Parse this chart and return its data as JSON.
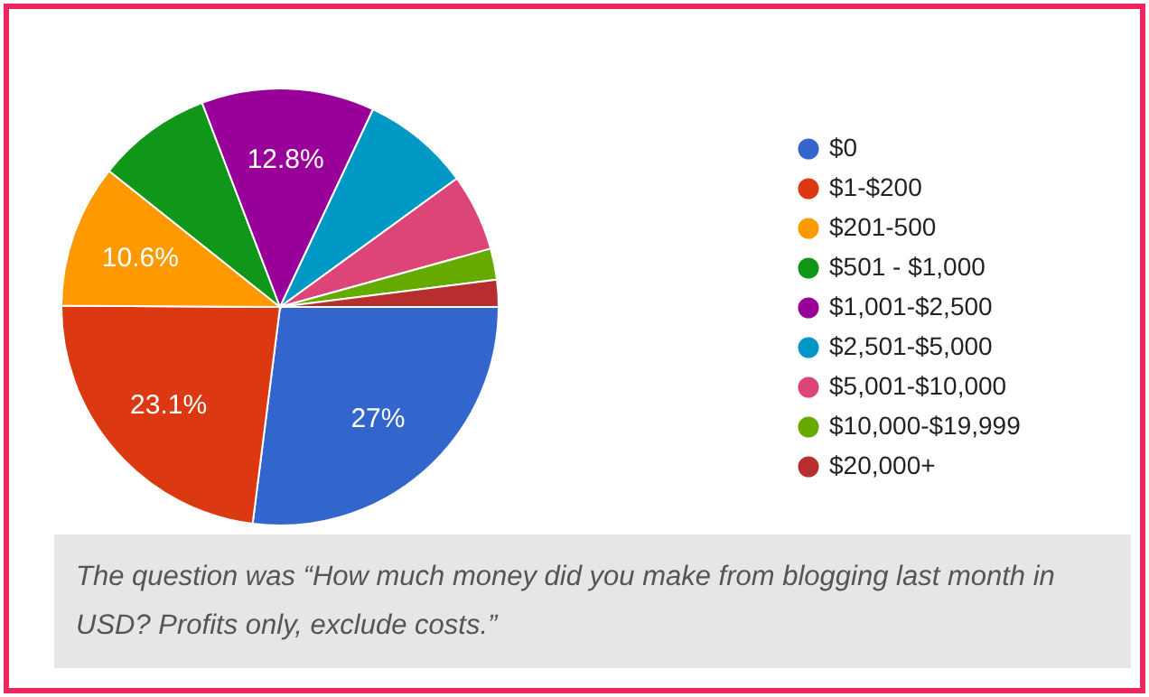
{
  "chart_data": {
    "type": "pie",
    "categories": [
      "$0",
      "$1-$200",
      "$201-500",
      "$501 - $1,000",
      "$1,001-$2,500",
      "$2,501-$5,000",
      "$5,001-$10,000",
      "$10,000-$19,999",
      "$20,000+"
    ],
    "values": [
      27,
      23.1,
      10.6,
      8.5,
      12.8,
      8.0,
      5.7,
      2.3,
      2.0
    ],
    "value_labels": [
      "27%",
      "23.1%",
      "10.6%",
      null,
      "12.8%",
      null,
      null,
      null,
      null
    ],
    "colors": [
      "#3366cc",
      "#dc3912",
      "#ff9900",
      "#109618",
      "#990099",
      "#0099c6",
      "#dd4477",
      "#66aa00",
      "#b82e2e"
    ],
    "legend": "right",
    "annotations": [
      "The question was “How much money did you make from blogging last month in USD? Profits only, exclude costs.”"
    ]
  }
}
